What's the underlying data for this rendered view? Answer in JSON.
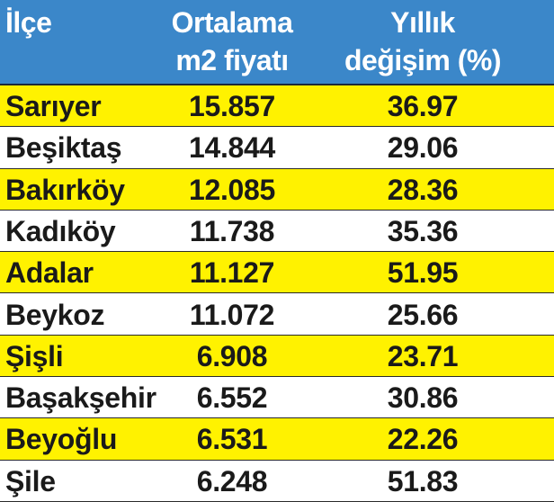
{
  "header": {
    "columns": [
      [
        "İlçe"
      ],
      [
        "Ortalama",
        "m2 fiyatı"
      ],
      [
        "Yıllık",
        "değişim (%)"
      ]
    ]
  },
  "table": {
    "rows": [
      [
        "Sarıyer",
        "15.857",
        "36.97"
      ],
      [
        "Beşiktaş",
        "14.844",
        "29.06"
      ],
      [
        "Bakırköy",
        "12.085",
        "28.36"
      ],
      [
        "Kadıköy",
        "11.738",
        "35.36"
      ],
      [
        "Adalar",
        "11.127",
        "51.95"
      ],
      [
        "Beykoz",
        "11.072",
        "25.66"
      ],
      [
        "Şişli",
        "6.908",
        "23.71"
      ],
      [
        "Başakşehir",
        "6.552",
        "30.86"
      ],
      [
        "Beyoğlu",
        "6.531",
        "22.26"
      ],
      [
        "Şile",
        "6.248",
        "51.83"
      ]
    ]
  }
}
